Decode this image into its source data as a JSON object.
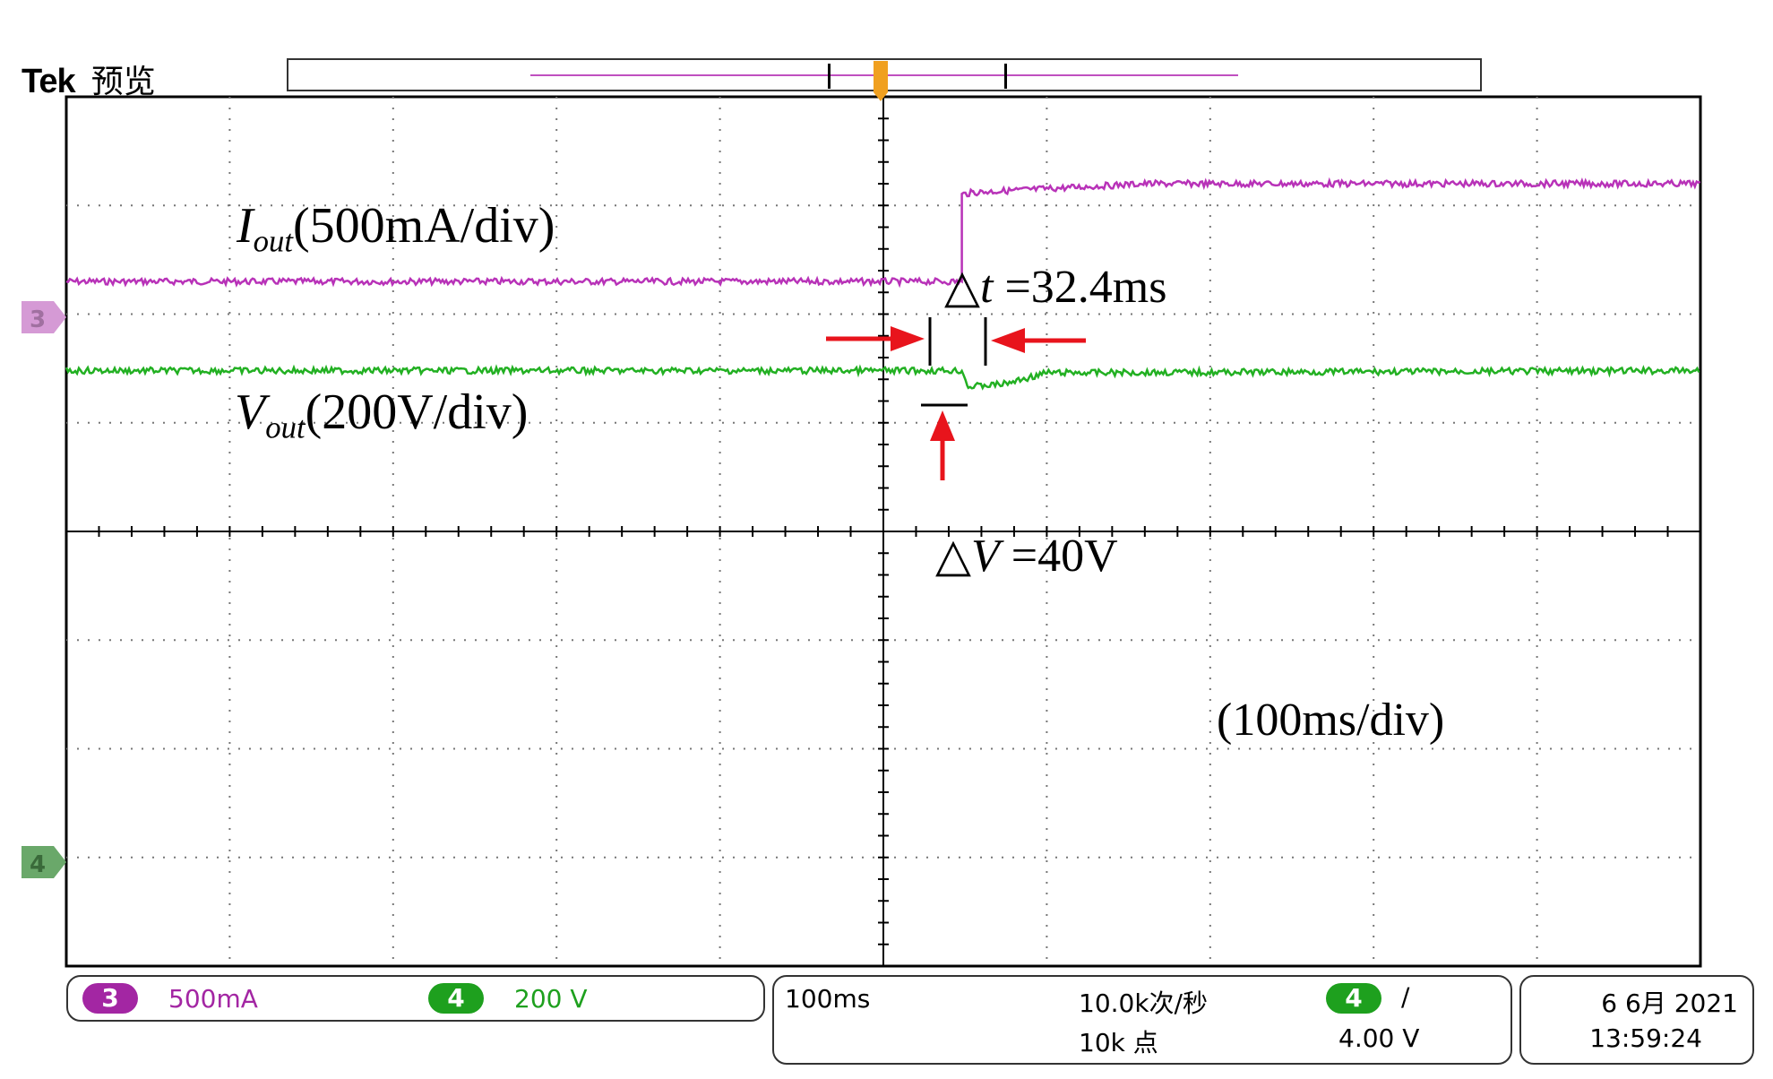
{
  "header": {
    "brand": "Tek",
    "mode": "预览"
  },
  "colors": {
    "ch3": "#b832b8",
    "ch4": "#22b022",
    "annotation_arrow": "#e8141c",
    "trigger": "#f0a020"
  },
  "markers": {
    "ch3": "3",
    "ch4": "4"
  },
  "annotations": {
    "iout_symbol": "I",
    "iout_sub": "out",
    "iout_scale": "(500mA/div)",
    "vout_symbol": "V",
    "vout_sub": "out",
    "vout_scale": "(200V/div)",
    "dt_symbol": "△",
    "dt_var": "t",
    "dt_value": " =32.4ms",
    "dv_symbol": "△",
    "dv_var": "V",
    "dv_value": " =40V",
    "time_scale": "(100ms/div)"
  },
  "status": {
    "ch3_badge": "3",
    "ch3_scale": "500mA",
    "ch4_badge": "4",
    "ch4_scale": "200 V",
    "timebase": "100ms",
    "sample_rate": "10.0k次/秒",
    "record_length": "10k 点",
    "trigger_source_badge": "4",
    "trigger_slope": "∕",
    "trigger_level": "4.00 V",
    "date": "6 6月 2021",
    "time": "13:59:24"
  },
  "chart_data": {
    "type": "line",
    "title": "",
    "xlabel": "(100ms/div)",
    "ylabel": "",
    "grid": true,
    "divisions": {
      "x": 10,
      "y": 8
    },
    "x_unit": "ms",
    "xlim": [
      -500,
      500
    ],
    "series": [
      {
        "name": "Iout(500mA/div)",
        "channel": "3",
        "unit": "div",
        "points": [
          [
            -500,
            2.3
          ],
          [
            48,
            2.3
          ],
          [
            48,
            3.1
          ],
          [
            55,
            3.12
          ],
          [
            160,
            3.2
          ],
          [
            500,
            3.2
          ]
        ]
      },
      {
        "name": "Vout(200V/div)",
        "channel": "4",
        "unit": "div",
        "points": [
          [
            -500,
            1.48
          ],
          [
            48,
            1.48
          ],
          [
            52,
            1.33
          ],
          [
            75,
            1.36
          ],
          [
            100,
            1.46
          ],
          [
            500,
            1.48
          ]
        ]
      }
    ],
    "annotations": [
      {
        "label": "△t =32.4ms",
        "delta_t_ms": 32.4
      },
      {
        "label": "△V =40V",
        "delta_v_V": 40
      }
    ]
  }
}
